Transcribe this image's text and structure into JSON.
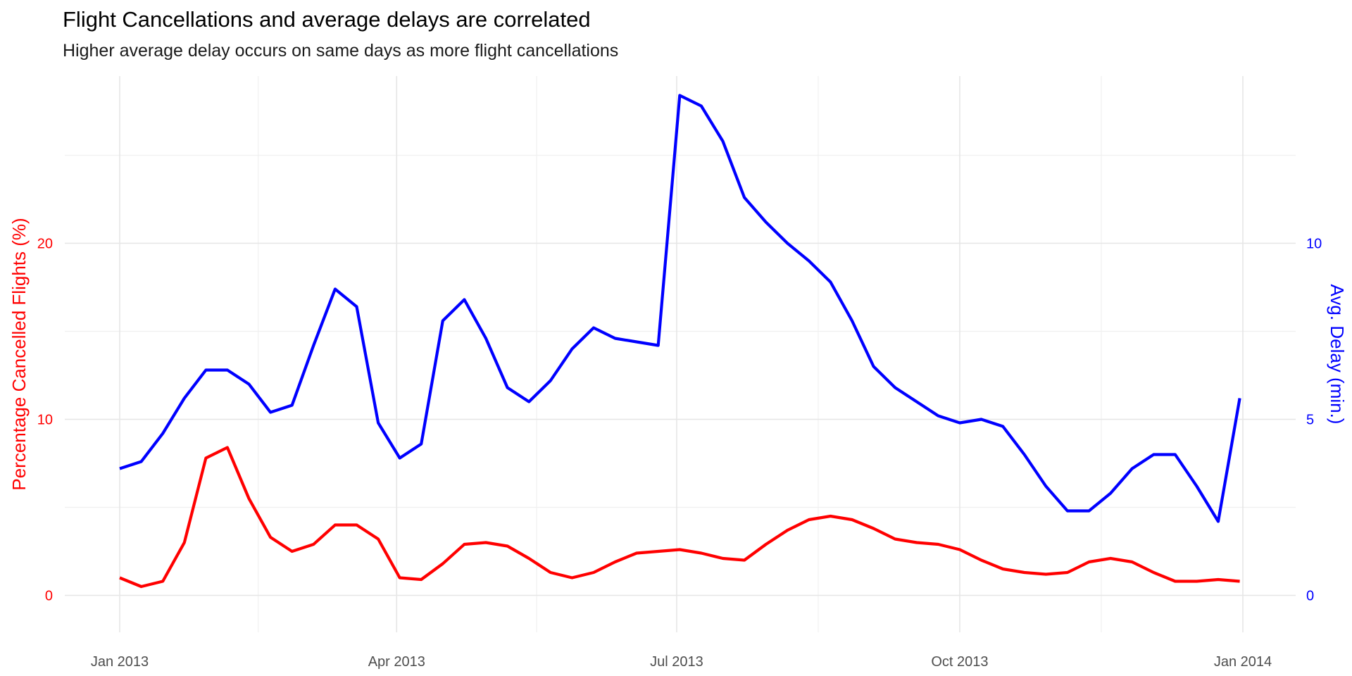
{
  "chart_data": {
    "type": "line",
    "title": "Flight Cancellations and average delays are correlated",
    "subtitle": "Higher average delay occurs on same days as more flight cancellations",
    "ylabel": "Percentage Cancelled Flights (%)",
    "y2label": "Avg. Delay (min.)",
    "xlim": [
      "2013-01-01",
      "2014-01-01"
    ],
    "ylim": [
      -2.1,
      29.5
    ],
    "y2lim": [
      -1.05,
      14.75
    ],
    "x_ticks": [
      {
        "date": "2013-01-01",
        "label": "Jan 2013"
      },
      {
        "date": "2013-04-01",
        "label": "Apr 2013"
      },
      {
        "date": "2013-07-01",
        "label": "Jul 2013"
      },
      {
        "date": "2013-10-01",
        "label": "Oct 2013"
      },
      {
        "date": "2014-01-01",
        "label": "Jan 2014"
      }
    ],
    "y_ticks": [
      0,
      10,
      20
    ],
    "y2_ticks": [
      0,
      5,
      10
    ],
    "grid": true,
    "colors": {
      "cancelled": "#ff0000",
      "delay": "#0000ff"
    },
    "series": [
      {
        "key": "cancelled",
        "axis": "left",
        "x": [
          "2013-01-01",
          "2013-01-08",
          "2013-01-15",
          "2013-01-22",
          "2013-01-29",
          "2013-02-05",
          "2013-02-12",
          "2013-02-19",
          "2013-02-26",
          "2013-03-05",
          "2013-03-12",
          "2013-03-19",
          "2013-03-26",
          "2013-04-02",
          "2013-04-09",
          "2013-04-16",
          "2013-04-23",
          "2013-04-30",
          "2013-05-07",
          "2013-05-14",
          "2013-05-21",
          "2013-05-28",
          "2013-06-04",
          "2013-06-11",
          "2013-06-18",
          "2013-06-25",
          "2013-07-02",
          "2013-07-09",
          "2013-07-16",
          "2013-07-23",
          "2013-07-30",
          "2013-08-06",
          "2013-08-13",
          "2013-08-20",
          "2013-08-27",
          "2013-09-03",
          "2013-09-10",
          "2013-09-17",
          "2013-09-24",
          "2013-10-01",
          "2013-10-08",
          "2013-10-15",
          "2013-10-22",
          "2013-10-29",
          "2013-11-05",
          "2013-11-12",
          "2013-11-19",
          "2013-11-26",
          "2013-12-03",
          "2013-12-10",
          "2013-12-17",
          "2013-12-24",
          "2013-12-31"
        ],
        "values": [
          1.0,
          0.5,
          0.8,
          3.0,
          7.8,
          8.4,
          5.5,
          3.3,
          2.5,
          2.9,
          4.0,
          4.0,
          3.2,
          1.0,
          0.9,
          1.8,
          2.9,
          3.0,
          2.8,
          2.1,
          1.3,
          1.0,
          1.3,
          1.9,
          2.4,
          2.5,
          2.6,
          2.4,
          2.1,
          2.0,
          2.9,
          3.7,
          4.3,
          4.5,
          4.3,
          3.8,
          3.2,
          3.0,
          2.9,
          2.6,
          2.0,
          1.5,
          1.3,
          1.2,
          1.3,
          1.9,
          2.1,
          1.9,
          1.3,
          0.8,
          0.8,
          0.9,
          0.8
        ]
      },
      {
        "key": "delay",
        "axis": "right",
        "x": [
          "2013-01-01",
          "2013-01-08",
          "2013-01-15",
          "2013-01-22",
          "2013-01-29",
          "2013-02-05",
          "2013-02-12",
          "2013-02-19",
          "2013-02-26",
          "2013-03-05",
          "2013-03-12",
          "2013-03-19",
          "2013-03-26",
          "2013-04-02",
          "2013-04-09",
          "2013-04-16",
          "2013-04-23",
          "2013-04-30",
          "2013-05-07",
          "2013-05-14",
          "2013-05-21",
          "2013-05-28",
          "2013-06-04",
          "2013-06-11",
          "2013-06-18",
          "2013-06-25",
          "2013-07-02",
          "2013-07-09",
          "2013-07-16",
          "2013-07-23",
          "2013-07-30",
          "2013-08-06",
          "2013-08-13",
          "2013-08-20",
          "2013-08-27",
          "2013-09-03",
          "2013-09-10",
          "2013-09-17",
          "2013-09-24",
          "2013-10-01",
          "2013-10-08",
          "2013-10-15",
          "2013-10-22",
          "2013-10-29",
          "2013-11-05",
          "2013-11-12",
          "2013-11-19",
          "2013-11-26",
          "2013-12-03",
          "2013-12-10",
          "2013-12-17",
          "2013-12-24",
          "2013-12-31"
        ],
        "values": [
          3.6,
          3.8,
          4.6,
          5.6,
          6.4,
          6.4,
          6.0,
          5.2,
          5.4,
          7.1,
          8.7,
          8.2,
          4.9,
          3.9,
          4.3,
          7.8,
          8.4,
          7.3,
          5.9,
          5.5,
          6.1,
          7.0,
          7.6,
          7.3,
          7.2,
          7.1,
          14.2,
          13.9,
          12.9,
          11.3,
          10.6,
          10.0,
          9.5,
          8.9,
          7.8,
          6.5,
          5.9,
          5.5,
          5.1,
          4.9,
          5.0,
          4.8,
          4.0,
          3.1,
          2.4,
          2.4,
          2.9,
          3.6,
          4.0,
          4.0,
          3.1,
          2.1,
          5.6
        ]
      }
    ]
  }
}
